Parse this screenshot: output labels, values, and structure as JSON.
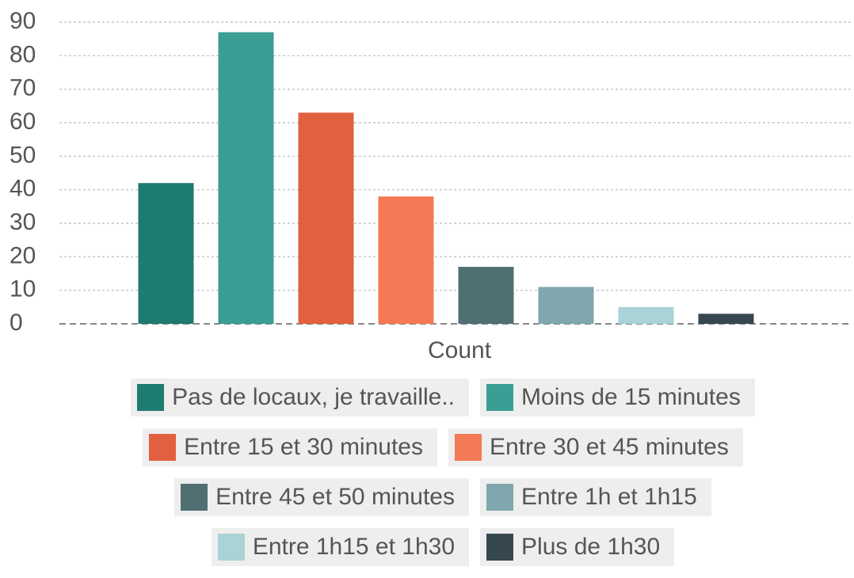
{
  "chart_data": {
    "type": "bar",
    "categories": [
      "Count"
    ],
    "series": [
      {
        "name": "Pas de locaux, je travaille..",
        "color": "#1e7b70",
        "values": [
          42
        ]
      },
      {
        "name": "Moins de 15 minutes",
        "color": "#3a9e94",
        "values": [
          87
        ]
      },
      {
        "name": "Entre 15 et 30 minutes",
        "color": "#e2603f",
        "values": [
          63
        ]
      },
      {
        "name": "Entre 30 et 45 minutes",
        "color": "#f47a55",
        "values": [
          38
        ]
      },
      {
        "name": "Entre 45 et 50 minutes",
        "color": "#4f6f73",
        "values": [
          17
        ]
      },
      {
        "name": "Entre 1h et 1h15",
        "color": "#7fa7ad",
        "values": [
          11
        ]
      },
      {
        "name": "Entre 1h15 et 1h30",
        "color": "#a9d3d6",
        "values": [
          5
        ]
      },
      {
        "name": "Plus de 1h30",
        "color": "#37474f",
        "values": [
          3
        ]
      }
    ],
    "ylim": [
      0,
      90
    ],
    "yticks": [
      0,
      10,
      20,
      30,
      40,
      50,
      60,
      70,
      80,
      90
    ],
    "grid": true,
    "legend": "bottom"
  }
}
